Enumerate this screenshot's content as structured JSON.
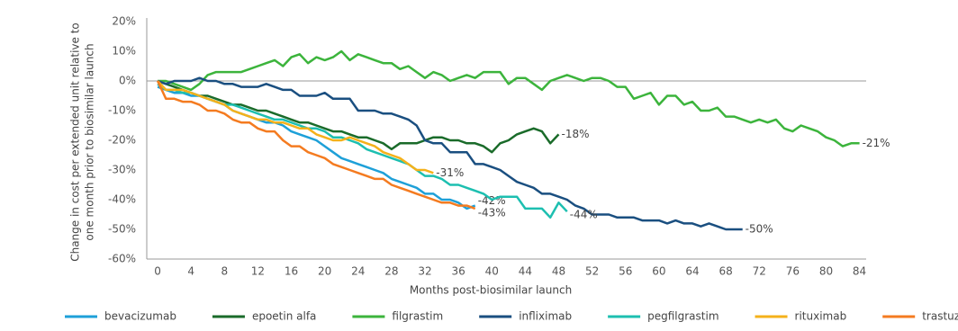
{
  "chart_data": {
    "type": "line",
    "x_label": "Months post-biosimilar launch",
    "y_label": [
      "Change in cost per extended unit relative to",
      "one month prior to biosimilar launch"
    ],
    "x": [
      0,
      1,
      2,
      3,
      4,
      5,
      6,
      7,
      8,
      9,
      10,
      11,
      12,
      13,
      14,
      15,
      16,
      17,
      18,
      19,
      20,
      21,
      22,
      23,
      24,
      25,
      26,
      27,
      28,
      29,
      30,
      31,
      32,
      33,
      34,
      35,
      36,
      37,
      38,
      39,
      40,
      41,
      42,
      43,
      44,
      45,
      46,
      47,
      48,
      49,
      50,
      51,
      52,
      53,
      54,
      55,
      56,
      57,
      58,
      59,
      60,
      61,
      62,
      63,
      64,
      65,
      66,
      67,
      68,
      69,
      70,
      71,
      72,
      73,
      74,
      75,
      76,
      77,
      78,
      79,
      80,
      81,
      82,
      83,
      84
    ],
    "xlim": [
      -1.3,
      84.8
    ],
    "xticks": [
      0,
      4,
      8,
      12,
      16,
      20,
      24,
      28,
      32,
      36,
      40,
      44,
      48,
      52,
      56,
      60,
      64,
      68,
      72,
      76,
      80,
      84
    ],
    "ylim": [
      -60,
      20
    ],
    "yticks": [
      {
        "value": -60,
        "label": "-60%"
      },
      {
        "value": -50,
        "label": "-50%"
      },
      {
        "value": -40,
        "label": "-40%"
      },
      {
        "value": -30,
        "label": "-30%"
      },
      {
        "value": -20,
        "label": "-20%"
      },
      {
        "value": -10,
        "label": "-10%"
      },
      {
        "value": 0,
        "label": "0%"
      },
      {
        "value": 10,
        "label": "10%"
      },
      {
        "value": 20,
        "label": "20%"
      }
    ],
    "series": [
      {
        "name": "bevacizumab",
        "color": "#1ea0d8",
        "end_label": "-42%",
        "values": [
          -2,
          -3,
          -4,
          -4,
          -5,
          -5,
          -6,
          -7,
          -8,
          -10,
          -11,
          -12,
          -13,
          -14,
          -14,
          -15,
          -17,
          -18,
          -19,
          -20,
          -22,
          -24,
          -26,
          -27,
          -28,
          -29,
          -30,
          -31,
          -33,
          -34,
          -35,
          -36,
          -38,
          -38,
          -40,
          -40,
          -41,
          -43,
          -42,
          null,
          null,
          null,
          null,
          null,
          null,
          null,
          null,
          null,
          null,
          null,
          null,
          null,
          null,
          null,
          null,
          null,
          null,
          null,
          null,
          null,
          null,
          null,
          null,
          null,
          null,
          null,
          null,
          null,
          null,
          null,
          null,
          null,
          null,
          null,
          null,
          null,
          null,
          null,
          null,
          null,
          null,
          null,
          null,
          null,
          null
        ]
      },
      {
        "name": "epoetin alfa",
        "color": "#1a6b2a",
        "end_label": "-18%",
        "values": [
          0,
          -1,
          -2,
          -3,
          -4,
          -5,
          -5,
          -6,
          -7,
          -8,
          -8,
          -9,
          -10,
          -10,
          -11,
          -12,
          -13,
          -14,
          -14,
          -15,
          -16,
          -17,
          -17,
          -18,
          -19,
          -19,
          -20,
          -21,
          -23,
          -21,
          -21,
          -21,
          -20,
          -19,
          -19,
          -20,
          -20,
          -21,
          -21,
          -22,
          -24,
          -21,
          -20,
          -18,
          -17,
          -16,
          -17,
          -21,
          -18,
          null,
          null,
          null,
          null,
          null,
          null,
          null,
          null,
          null,
          null,
          null,
          null,
          null,
          null,
          null,
          null,
          null,
          null,
          null,
          null,
          null,
          null,
          null,
          null,
          null,
          null,
          null,
          null,
          null,
          null,
          null,
          null,
          null,
          null,
          null,
          null
        ]
      },
      {
        "name": "filgrastim",
        "color": "#3cb43c",
        "end_label": "-21%",
        "values": [
          0,
          0,
          -1,
          -2,
          -3,
          -1,
          2,
          3,
          3,
          3,
          3,
          4,
          5,
          6,
          7,
          5,
          8,
          9,
          6,
          8,
          7,
          8,
          10,
          7,
          9,
          8,
          7,
          6,
          6,
          4,
          5,
          3,
          1,
          3,
          2,
          0,
          1,
          2,
          1,
          3,
          3,
          3,
          -1,
          1,
          1,
          -1,
          -3,
          0,
          1,
          2,
          1,
          0,
          1,
          1,
          0,
          -2,
          -2,
          -6,
          -5,
          -4,
          -8,
          -5,
          -5,
          -8,
          -7,
          -10,
          -10,
          -9,
          -12,
          -12,
          -13,
          -14,
          -13,
          -14,
          -13,
          -16,
          -17,
          -15,
          -16,
          -17,
          -19,
          -20,
          -22,
          -21,
          -21
        ]
      },
      {
        "name": "infliximab",
        "color": "#1a4f80",
        "end_label": "-50%",
        "values": [
          0,
          -1,
          0,
          0,
          0,
          1,
          0,
          0,
          -1,
          -1,
          -2,
          -2,
          -2,
          -1,
          -2,
          -3,
          -3,
          -5,
          -5,
          -5,
          -4,
          -6,
          -6,
          -6,
          -10,
          -10,
          -10,
          -11,
          -11,
          -12,
          -13,
          -15,
          -20,
          -21,
          -21,
          -24,
          -24,
          -24,
          -28,
          -28,
          -29,
          -30,
          -32,
          -34,
          -35,
          -36,
          -38,
          -38,
          -39,
          -40,
          -42,
          -43,
          -45,
          -45,
          -45,
          -46,
          -46,
          -46,
          -47,
          -47,
          -47,
          -48,
          -47,
          -48,
          -48,
          -49,
          -48,
          -49,
          -50,
          -50,
          -50,
          null,
          null,
          null,
          null,
          null,
          null,
          null,
          null,
          null,
          null,
          null,
          null,
          null,
          null
        ]
      },
      {
        "name": "pegfilgrastim",
        "color": "#1dbfb0",
        "end_label": "-44%",
        "values": [
          -1,
          -3,
          -3,
          -4,
          -4,
          -5,
          -6,
          -7,
          -8,
          -8,
          -9,
          -10,
          -11,
          -12,
          -13,
          -13,
          -14,
          -15,
          -16,
          -16,
          -17,
          -19,
          -19,
          -20,
          -21,
          -23,
          -24,
          -25,
          -26,
          -27,
          -28,
          -30,
          -32,
          -32,
          -33,
          -35,
          -35,
          -36,
          -37,
          -38,
          -40,
          -39,
          -39,
          -39,
          -43,
          -43,
          -43,
          -46,
          -41,
          -44,
          null,
          null,
          null,
          null,
          null,
          null,
          null,
          null,
          null,
          null,
          null,
          null,
          null,
          null,
          null,
          null,
          null,
          null,
          null,
          null,
          null,
          null,
          null,
          null,
          null,
          null,
          null,
          null,
          null,
          null,
          null,
          null,
          null,
          null,
          null
        ]
      },
      {
        "name": "rituximab",
        "color": "#f5b11a",
        "end_label": "-31%",
        "values": [
          0,
          -3,
          -3,
          -3,
          -4,
          -5,
          -6,
          -7,
          -8,
          -10,
          -11,
          -12,
          -13,
          -13,
          -14,
          -14,
          -15,
          -16,
          -16,
          -18,
          -19,
          -20,
          -20,
          -19,
          -20,
          -21,
          -22,
          -24,
          -25,
          -26,
          -28,
          -30,
          -30,
          -31,
          null,
          null,
          null,
          null,
          null,
          null,
          null,
          null,
          null,
          null,
          null,
          null,
          null,
          null,
          null,
          null,
          null,
          null,
          null,
          null,
          null,
          null,
          null,
          null,
          null,
          null,
          null,
          null,
          null,
          null,
          null,
          null,
          null,
          null,
          null,
          null,
          null,
          null,
          null,
          null,
          null,
          null,
          null,
          null,
          null,
          null,
          null,
          null,
          null,
          null,
          null
        ]
      },
      {
        "name": "trastuzumab",
        "color": "#f47b20",
        "end_label": "-43%",
        "values": [
          0,
          -6,
          -6,
          -7,
          -7,
          -8,
          -10,
          -10,
          -11,
          -13,
          -14,
          -14,
          -16,
          -17,
          -17,
          -20,
          -22,
          -22,
          -24,
          -25,
          -26,
          -28,
          -29,
          -30,
          -31,
          -32,
          -33,
          -33,
          -35,
          -36,
          -37,
          -38,
          -39,
          -40,
          -41,
          -41,
          -42,
          -42,
          -43,
          null,
          null,
          null,
          null,
          null,
          null,
          null,
          null,
          null,
          null,
          null,
          null,
          null,
          null,
          null,
          null,
          null,
          null,
          null,
          null,
          null,
          null,
          null,
          null,
          null,
          null,
          null,
          null,
          null,
          null,
          null,
          null,
          null,
          null,
          null,
          null,
          null,
          null,
          null,
          null,
          null,
          null,
          null,
          null,
          null,
          null
        ]
      }
    ]
  }
}
